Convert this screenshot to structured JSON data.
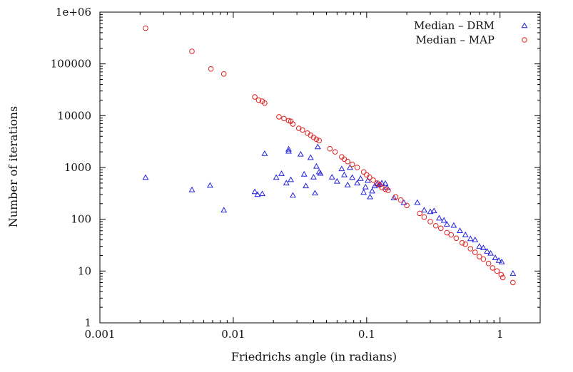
{
  "chart_data": {
    "type": "scatter",
    "title": "",
    "xlabel": "Friedrichs angle (in radians)",
    "ylabel": "Number of iterations",
    "xscale": "log",
    "yscale": "log",
    "xlim": [
      0.001,
      2
    ],
    "ylim": [
      1,
      1000000
    ],
    "x_ticks": [
      {
        "value": 0.001,
        "label": "0.001"
      },
      {
        "value": 0.01,
        "label": "0.01"
      },
      {
        "value": 0.1,
        "label": "0.1"
      },
      {
        "value": 1,
        "label": "1"
      }
    ],
    "y_ticks": [
      {
        "value": 1,
        "label": "1"
      },
      {
        "value": 10,
        "label": "10"
      },
      {
        "value": 100,
        "label": "100"
      },
      {
        "value": 1000,
        "label": "1000"
      },
      {
        "value": 10000,
        "label": "10000"
      },
      {
        "value": 100000,
        "label": "100000"
      },
      {
        "value": 1000000,
        "label": "1e+06"
      }
    ],
    "legend_position": "top-right",
    "series": [
      {
        "name": "Median – DRM",
        "marker": "triangle",
        "color": "#2222dd",
        "points": [
          [
            0.0022,
            640
          ],
          [
            0.0049,
            370
          ],
          [
            0.0067,
            450
          ],
          [
            0.0085,
            150
          ],
          [
            0.0145,
            340
          ],
          [
            0.0152,
            300
          ],
          [
            0.0165,
            310
          ],
          [
            0.0172,
            1850
          ],
          [
            0.021,
            640
          ],
          [
            0.023,
            760
          ],
          [
            0.025,
            500
          ],
          [
            0.026,
            2050
          ],
          [
            0.026,
            2250
          ],
          [
            0.027,
            580
          ],
          [
            0.028,
            290
          ],
          [
            0.032,
            1800
          ],
          [
            0.034,
            740
          ],
          [
            0.035,
            440
          ],
          [
            0.038,
            1550
          ],
          [
            0.04,
            650
          ],
          [
            0.041,
            320
          ],
          [
            0.042,
            1050
          ],
          [
            0.043,
            2500
          ],
          [
            0.044,
            820
          ],
          [
            0.045,
            770
          ],
          [
            0.055,
            650
          ],
          [
            0.06,
            540
          ],
          [
            0.065,
            940
          ],
          [
            0.068,
            720
          ],
          [
            0.072,
            460
          ],
          [
            0.075,
            1000
          ],
          [
            0.078,
            640
          ],
          [
            0.085,
            500
          ],
          [
            0.09,
            610
          ],
          [
            0.095,
            330
          ],
          [
            0.098,
            420
          ],
          [
            0.102,
            560
          ],
          [
            0.106,
            270
          ],
          [
            0.11,
            350
          ],
          [
            0.115,
            440
          ],
          [
            0.12,
            480
          ],
          [
            0.125,
            470
          ],
          [
            0.13,
            500
          ],
          [
            0.138,
            490
          ],
          [
            0.142,
            410
          ],
          [
            0.16,
            260
          ],
          [
            0.19,
            210
          ],
          [
            0.24,
            210
          ],
          [
            0.27,
            150
          ],
          [
            0.3,
            140
          ],
          [
            0.32,
            145
          ],
          [
            0.35,
            105
          ],
          [
            0.38,
            95
          ],
          [
            0.4,
            80
          ],
          [
            0.45,
            76
          ],
          [
            0.5,
            60
          ],
          [
            0.55,
            50
          ],
          [
            0.6,
            42
          ],
          [
            0.65,
            40
          ],
          [
            0.7,
            30
          ],
          [
            0.75,
            28
          ],
          [
            0.8,
            24
          ],
          [
            0.85,
            22
          ],
          [
            0.92,
            18
          ],
          [
            0.98,
            16
          ],
          [
            1.03,
            15
          ],
          [
            1.25,
            9
          ]
        ]
      },
      {
        "name": "Median – MAP",
        "marker": "circle",
        "color": "#e02020",
        "points": [
          [
            0.0022,
            490000
          ],
          [
            0.0049,
            175000
          ],
          [
            0.0068,
            80000
          ],
          [
            0.0085,
            64000
          ],
          [
            0.0145,
            23000
          ],
          [
            0.0155,
            20000
          ],
          [
            0.0165,
            19000
          ],
          [
            0.0172,
            17500
          ],
          [
            0.022,
            9500
          ],
          [
            0.024,
            8800
          ],
          [
            0.026,
            8000
          ],
          [
            0.027,
            7800
          ],
          [
            0.028,
            6900
          ],
          [
            0.031,
            5700
          ],
          [
            0.033,
            5300
          ],
          [
            0.036,
            4600
          ],
          [
            0.038,
            4200
          ],
          [
            0.04,
            3800
          ],
          [
            0.042,
            3500
          ],
          [
            0.044,
            3300
          ],
          [
            0.053,
            2300
          ],
          [
            0.058,
            2000
          ],
          [
            0.065,
            1600
          ],
          [
            0.068,
            1450
          ],
          [
            0.072,
            1300
          ],
          [
            0.078,
            1150
          ],
          [
            0.085,
            1000
          ],
          [
            0.095,
            820
          ],
          [
            0.1,
            720
          ],
          [
            0.105,
            650
          ],
          [
            0.112,
            570
          ],
          [
            0.12,
            500
          ],
          [
            0.125,
            460
          ],
          [
            0.13,
            410
          ],
          [
            0.138,
            380
          ],
          [
            0.145,
            360
          ],
          [
            0.165,
            270
          ],
          [
            0.18,
            235
          ],
          [
            0.2,
            185
          ],
          [
            0.25,
            130
          ],
          [
            0.27,
            110
          ],
          [
            0.3,
            90
          ],
          [
            0.33,
            75
          ],
          [
            0.36,
            67
          ],
          [
            0.4,
            55
          ],
          [
            0.43,
            50
          ],
          [
            0.47,
            43
          ],
          [
            0.52,
            35
          ],
          [
            0.55,
            33
          ],
          [
            0.6,
            27
          ],
          [
            0.65,
            23
          ],
          [
            0.7,
            19
          ],
          [
            0.75,
            17
          ],
          [
            0.82,
            14
          ],
          [
            0.88,
            11.5
          ],
          [
            0.95,
            10
          ],
          [
            1.02,
            8.5
          ],
          [
            1.05,
            7.5
          ],
          [
            1.25,
            6
          ]
        ]
      }
    ]
  }
}
